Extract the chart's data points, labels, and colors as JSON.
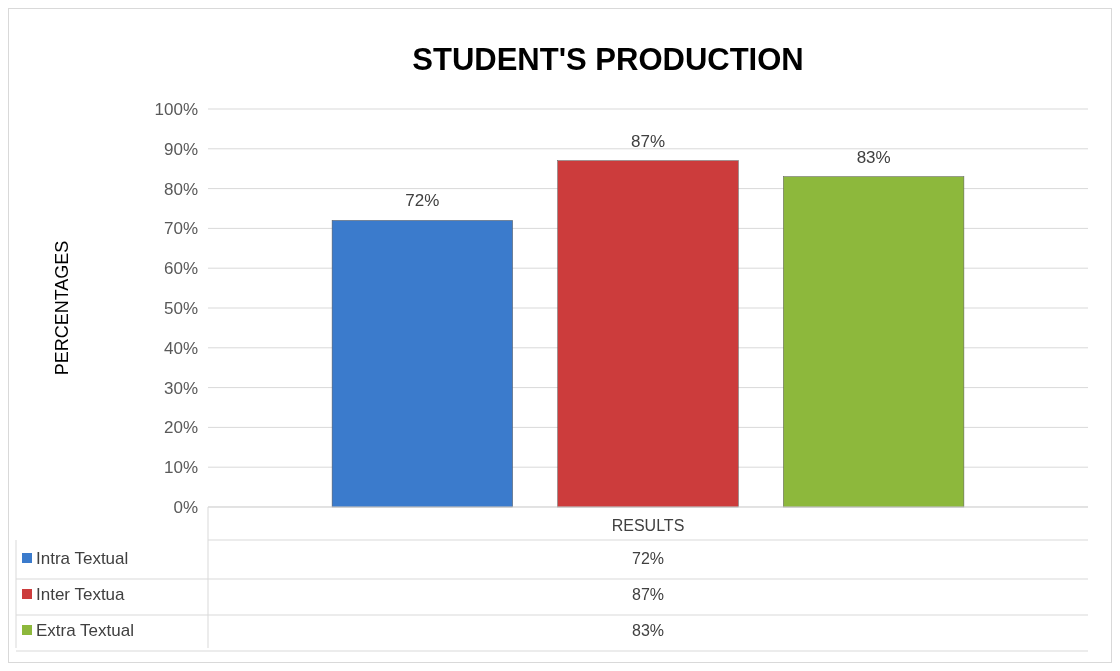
{
  "chart_data": {
    "type": "bar",
    "title": "STUDENT'S PRODUCTION",
    "ylabel": "PERCENTAGES",
    "categories": [
      "RESULTS"
    ],
    "series": [
      {
        "name": "Intra Textual",
        "color": "#3b7bcc",
        "values": [
          72
        ],
        "value_labels": [
          "72%"
        ]
      },
      {
        "name": "Inter Textua",
        "color": "#cc3c3c",
        "values": [
          87
        ],
        "value_labels": [
          "87%"
        ]
      },
      {
        "name": "Extra Textual",
        "color": "#8db83c",
        "values": [
          83
        ],
        "value_labels": [
          "83%"
        ]
      }
    ],
    "ylim": [
      0,
      100
    ],
    "yticks": [
      {
        "value": 0,
        "label": "0%"
      },
      {
        "value": 10,
        "label": "10%"
      },
      {
        "value": 20,
        "label": "20%"
      },
      {
        "value": 30,
        "label": "30%"
      },
      {
        "value": 40,
        "label": "40%"
      },
      {
        "value": 50,
        "label": "50%"
      },
      {
        "value": 60,
        "label": "60%"
      },
      {
        "value": 70,
        "label": "70%"
      },
      {
        "value": 80,
        "label": "80%"
      },
      {
        "value": 90,
        "label": "90%"
      },
      {
        "value": 100,
        "label": "100%"
      }
    ],
    "grid": "y",
    "legend": "bottom"
  }
}
